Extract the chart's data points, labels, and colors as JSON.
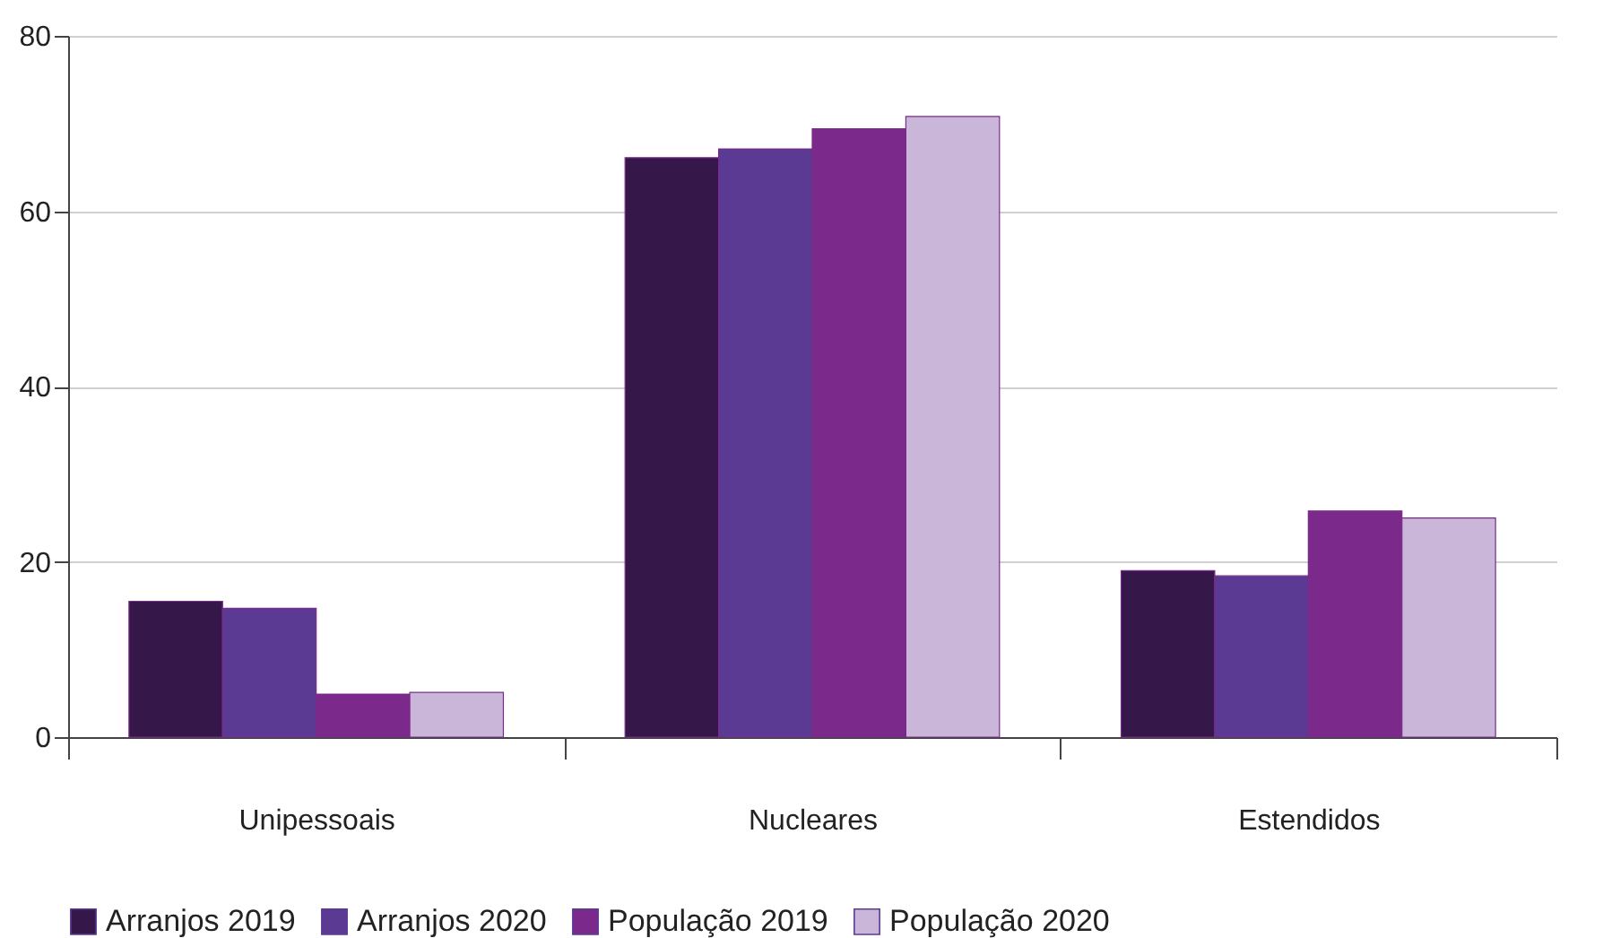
{
  "chart_data": {
    "type": "bar",
    "categories": [
      "Unipessoais",
      "Nucleares",
      "Estendidos"
    ],
    "series": [
      {
        "name": "Arranjos 2019",
        "color": "#35174a",
        "values": [
          15.5,
          66.1,
          19.0
        ]
      },
      {
        "name": "Arranjos 2020",
        "color": "#5b3a94",
        "values": [
          14.7,
          67.1,
          18.4
        ]
      },
      {
        "name": "População 2019",
        "color": "#7b2a8b",
        "values": [
          4.9,
          69.4,
          25.8
        ]
      },
      {
        "name": "População 2020",
        "color": "#c9b6d9",
        "values": [
          5.1,
          70.8,
          25.0
        ]
      }
    ],
    "ylim": [
      0,
      80
    ],
    "yticks": [
      0,
      20,
      40,
      60,
      80
    ],
    "grid": "y",
    "legend": "bottom"
  }
}
